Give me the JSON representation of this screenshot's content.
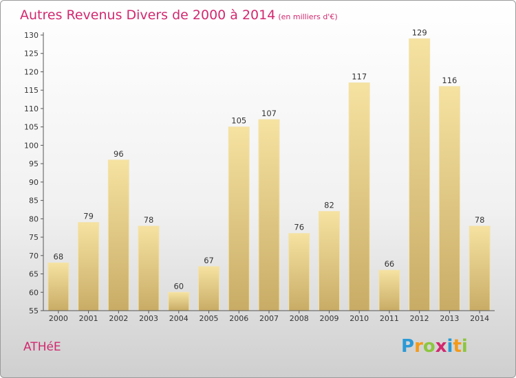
{
  "title": "Autres Revenus Divers de 2000 à 2014",
  "unit": "(en milliers d'€)",
  "commune": "ATHéE",
  "logo": {
    "letters": [
      "P",
      "r",
      "o",
      "x",
      "i",
      "t",
      "i"
    ],
    "colors": [
      "#2a9ad6",
      "#f39a1a",
      "#8cc63f",
      "#d2286f",
      "#2a9ad6",
      "#f39a1a",
      "#8cc63f"
    ]
  },
  "colors": {
    "bar_top": "#f6e2a1",
    "bar_bottom": "#c8ac66",
    "title": "#d2286f"
  },
  "chart_data": {
    "type": "bar",
    "categories": [
      "2000",
      "2001",
      "2002",
      "2003",
      "2004",
      "2005",
      "2006",
      "2007",
      "2008",
      "2009",
      "2010",
      "2011",
      "2012",
      "2013",
      "2014"
    ],
    "values": [
      68,
      79,
      96,
      78,
      60,
      67,
      105,
      107,
      76,
      82,
      117,
      66,
      129,
      116,
      78
    ],
    "ylim": [
      55,
      130
    ],
    "yticks": [
      55,
      60,
      65,
      70,
      75,
      80,
      85,
      90,
      95,
      100,
      105,
      110,
      115,
      120,
      125,
      130
    ],
    "grid": false,
    "data_labels": true
  }
}
